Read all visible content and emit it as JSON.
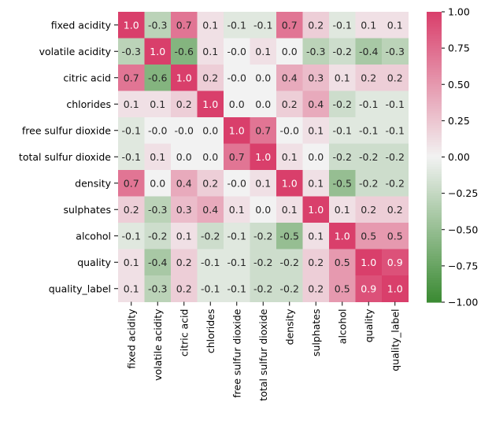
{
  "chart_data": {
    "type": "heatmap",
    "title": "",
    "xlabel": "",
    "ylabel": "",
    "labels": [
      "fixed acidity",
      "volatile acidity",
      "citric acid",
      "chlorides",
      "free sulfur dioxide",
      "total sulfur dioxide",
      "density",
      "sulphates",
      "alcohol",
      "quality",
      "quality_label"
    ],
    "values": [
      [
        1.0,
        -0.3,
        0.7,
        0.1,
        -0.1,
        -0.1,
        0.7,
        0.2,
        -0.1,
        0.1,
        0.1
      ],
      [
        -0.3,
        1.0,
        -0.6,
        0.1,
        -0.0,
        0.1,
        0.0,
        -0.3,
        -0.2,
        -0.4,
        -0.3
      ],
      [
        0.7,
        -0.6,
        1.0,
        0.2,
        -0.0,
        0.0,
        0.4,
        0.3,
        0.1,
        0.2,
        0.2
      ],
      [
        0.1,
        0.1,
        0.2,
        1.0,
        0.0,
        0.0,
        0.2,
        0.4,
        -0.2,
        -0.1,
        -0.1
      ],
      [
        -0.1,
        -0.0,
        -0.0,
        0.0,
        1.0,
        0.7,
        -0.0,
        0.1,
        -0.1,
        -0.1,
        -0.1
      ],
      [
        -0.1,
        0.1,
        0.0,
        0.0,
        0.7,
        1.0,
        0.1,
        0.0,
        -0.2,
        -0.2,
        -0.2
      ],
      [
        0.7,
        0.0,
        0.4,
        0.2,
        -0.0,
        0.1,
        1.0,
        0.1,
        -0.5,
        -0.2,
        -0.2
      ],
      [
        0.2,
        -0.3,
        0.3,
        0.4,
        0.1,
        0.0,
        0.1,
        1.0,
        0.1,
        0.2,
        0.2
      ],
      [
        -0.1,
        -0.2,
        0.1,
        -0.2,
        -0.1,
        -0.2,
        -0.5,
        0.1,
        1.0,
        0.5,
        0.5
      ],
      [
        0.1,
        -0.4,
        0.2,
        -0.1,
        -0.1,
        -0.2,
        -0.2,
        0.2,
        0.5,
        1.0,
        0.9
      ],
      [
        0.1,
        -0.3,
        0.2,
        -0.1,
        -0.1,
        -0.2,
        -0.2,
        0.2,
        0.5,
        0.9,
        1.0
      ]
    ],
    "value_labels": [
      [
        "1.0",
        "-0.3",
        "0.7",
        "0.1",
        "-0.1",
        "-0.1",
        "0.7",
        "0.2",
        "-0.1",
        "0.1",
        "0.1"
      ],
      [
        "-0.3",
        "1.0",
        "-0.6",
        "0.1",
        "-0.0",
        "0.1",
        "0.0",
        "-0.3",
        "-0.2",
        "-0.4",
        "-0.3"
      ],
      [
        "0.7",
        "-0.6",
        "1.0",
        "0.2",
        "-0.0",
        "0.0",
        "0.4",
        "0.3",
        "0.1",
        "0.2",
        "0.2"
      ],
      [
        "0.1",
        "0.1",
        "0.2",
        "1.0",
        "0.0",
        "0.0",
        "0.2",
        "0.4",
        "-0.2",
        "-0.1",
        "-0.1"
      ],
      [
        "-0.1",
        "-0.0",
        "-0.0",
        "0.0",
        "1.0",
        "0.7",
        "-0.0",
        "0.1",
        "-0.1",
        "-0.1",
        "-0.1"
      ],
      [
        "-0.1",
        "0.1",
        "0.0",
        "0.0",
        "0.7",
        "1.0",
        "0.1",
        "0.0",
        "-0.2",
        "-0.2",
        "-0.2"
      ],
      [
        "0.7",
        "0.0",
        "0.4",
        "0.2",
        "-0.0",
        "0.1",
        "1.0",
        "0.1",
        "-0.5",
        "-0.2",
        "-0.2"
      ],
      [
        "0.2",
        "-0.3",
        "0.3",
        "0.4",
        "0.1",
        "0.0",
        "0.1",
        "1.0",
        "0.1",
        "0.2",
        "0.2"
      ],
      [
        "-0.1",
        "-0.2",
        "0.1",
        "-0.2",
        "-0.1",
        "-0.2",
        "-0.5",
        "0.1",
        "1.0",
        "0.5",
        "0.5"
      ],
      [
        "0.1",
        "-0.4",
        "0.2",
        "-0.1",
        "-0.1",
        "-0.2",
        "-0.2",
        "0.2",
        "0.5",
        "1.0",
        "0.9"
      ],
      [
        "0.1",
        "-0.3",
        "0.2",
        "-0.1",
        "-0.1",
        "-0.2",
        "-0.2",
        "0.2",
        "0.5",
        "0.9",
        "1.0"
      ]
    ],
    "colorbar": {
      "vmin": -1.0,
      "vmax": 1.0,
      "ticks": [
        1.0,
        0.75,
        0.5,
        0.25,
        0.0,
        -0.25,
        -0.5,
        -0.75,
        -1.0
      ],
      "tick_labels": [
        "1.00",
        "0.75",
        "0.50",
        "0.25",
        "0.00",
        "−0.25",
        "−0.50",
        "−0.75",
        "−1.00"
      ],
      "colors": {
        "low": "#3a8a32",
        "mid": "#f2f2f2",
        "high": "#d93f6b"
      }
    },
    "grid": false,
    "legend": "colorbar-right"
  }
}
